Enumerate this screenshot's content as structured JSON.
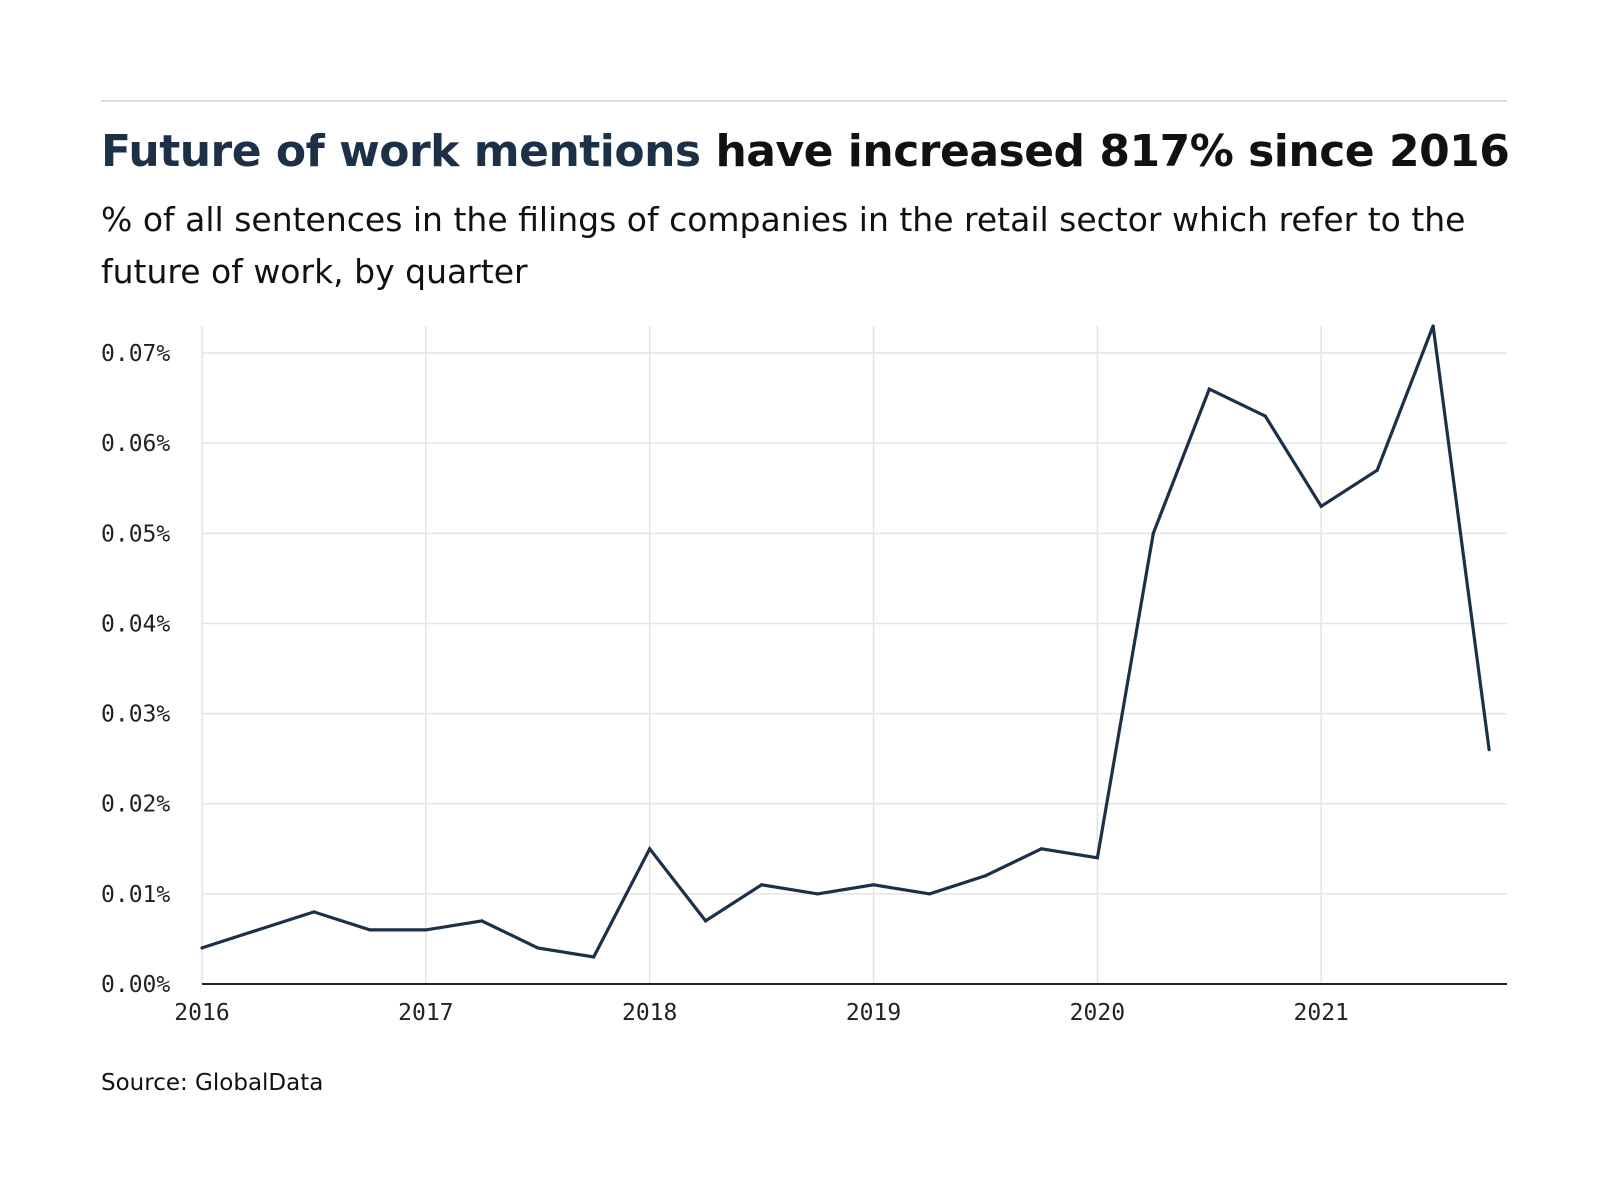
{
  "header": {
    "title_accent": "Future of work mentions",
    "title_rest": " have increased 817% since 2016",
    "subtitle": "% of all sentences in the filings of companies in the retail sector which refer to the future of work, by quarter"
  },
  "footer": {
    "source": "Source: GlobalData"
  },
  "colors": {
    "line": "#1c3048",
    "accent": "#1c3048",
    "grid": "#e4e4e4",
    "axis": "#222222"
  },
  "chart_data": {
    "type": "line",
    "title": "Future of work mentions have increased 817% since 2016",
    "xlabel": "",
    "ylabel": "",
    "grid": true,
    "legend": "none",
    "x_tick_labels": [
      "2016",
      "2017",
      "2018",
      "2019",
      "2020",
      "2021"
    ],
    "x_ticks": [
      2016,
      2017,
      2018,
      2019,
      2020,
      2021
    ],
    "y_tick_labels": [
      "0.00%",
      "0.01%",
      "0.02%",
      "0.03%",
      "0.04%",
      "0.05%",
      "0.06%",
      "0.07%"
    ],
    "y_ticks": [
      0.0,
      0.01,
      0.02,
      0.03,
      0.04,
      0.05,
      0.06,
      0.07
    ],
    "xlim": [
      2016,
      2021.83
    ],
    "ylim": [
      0,
      0.073
    ],
    "series": [
      {
        "x": [
          2016.0,
          2016.25,
          2016.5,
          2016.75,
          2017.0,
          2017.25,
          2017.5,
          2017.75,
          2018.0,
          2018.25,
          2018.5,
          2018.75,
          2019.0,
          2019.25,
          2019.5,
          2019.75,
          2020.0,
          2020.25,
          2020.5,
          2020.75,
          2021.0,
          2021.25,
          2021.5,
          2021.75
        ],
        "values": [
          0.004,
          0.006,
          0.008,
          0.006,
          0.006,
          0.007,
          0.004,
          0.003,
          0.015,
          0.007,
          0.011,
          0.01,
          0.011,
          0.01,
          0.012,
          0.015,
          0.014,
          0.05,
          0.066,
          0.063,
          0.053,
          0.057,
          0.073,
          0.026
        ]
      }
    ]
  }
}
